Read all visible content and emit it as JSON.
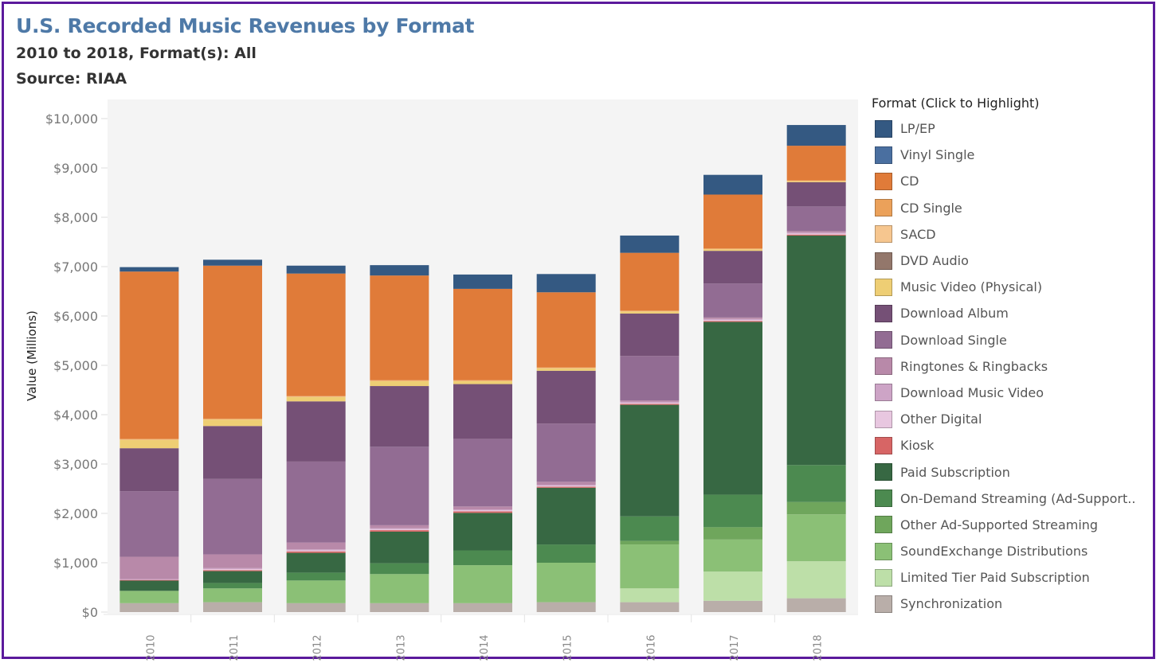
{
  "header": {
    "title": "U.S. Recorded Music Revenues by Format",
    "subtitle": "2010 to 2018, Format(s): All",
    "source": "Source: RIAA"
  },
  "legend": {
    "title": "Format (Click to Highlight)"
  },
  "chart_data": {
    "type": "bar",
    "stacked": true,
    "title": "U.S. Recorded Music Revenues by Format",
    "xlabel": "",
    "ylabel": "Value (Millions)",
    "ylim": [
      0,
      10000
    ],
    "yticks": [
      0,
      1000,
      2000,
      3000,
      4000,
      5000,
      6000,
      7000,
      8000,
      9000,
      10000
    ],
    "ytick_labels": [
      "$0",
      "$1,000",
      "$2,000",
      "$3,000",
      "$4,000",
      "$5,000",
      "$6,000",
      "$7,000",
      "$8,000",
      "$9,000",
      "$10,000"
    ],
    "grid": false,
    "legend_position": "right",
    "categories": [
      "2010",
      "2011",
      "2012",
      "2013",
      "2014",
      "2015",
      "2016",
      "2017",
      "2018"
    ],
    "series": [
      {
        "name": "Synchronization",
        "color": "#b9aea9",
        "values": [
          180,
          200,
          180,
          180,
          180,
          200,
          200,
          230,
          280
        ]
      },
      {
        "name": "Limited Tier Paid Subscription",
        "color": "#bddfa8",
        "values": [
          0,
          0,
          0,
          0,
          0,
          0,
          280,
          590,
          750
        ]
      },
      {
        "name": "SoundExchange Distributions",
        "color": "#8bc076",
        "values": [
          250,
          280,
          460,
          590,
          770,
          800,
          890,
          650,
          950
        ]
      },
      {
        "name": "Other Ad-Supported Streaming",
        "color": "#6fa65c",
        "values": [
          0,
          0,
          0,
          0,
          0,
          0,
          70,
          250,
          250
        ]
      },
      {
        "name": "On-Demand Streaming (Ad-Supported)",
        "color": "#4c8a50",
        "values": [
          0,
          110,
          160,
          220,
          300,
          370,
          500,
          660,
          750
        ]
      },
      {
        "name": "Paid Subscription",
        "color": "#376843",
        "values": [
          210,
          240,
          400,
          640,
          760,
          1150,
          2260,
          3500,
          4650
        ]
      },
      {
        "name": "Kiosk",
        "color": "#d76565",
        "values": [
          10,
          20,
          30,
          30,
          30,
          20,
          20,
          20,
          20
        ]
      },
      {
        "name": "Other Digital",
        "color": "#e8c7e0",
        "values": [
          0,
          20,
          20,
          20,
          20,
          20,
          20,
          20,
          20
        ]
      },
      {
        "name": "Download Music Video",
        "color": "#cda4c6",
        "values": [
          20,
          20,
          20,
          20,
          20,
          20,
          20,
          20,
          20
        ]
      },
      {
        "name": "Ringtones & Ringbacks",
        "color": "#b889a9",
        "values": [
          450,
          280,
          140,
          60,
          60,
          60,
          30,
          30,
          30
        ]
      },
      {
        "name": "Download Single",
        "color": "#926c93",
        "values": [
          1330,
          1530,
          1640,
          1590,
          1370,
          1180,
          900,
          690,
          500
        ]
      },
      {
        "name": "Download Album",
        "color": "#755076",
        "values": [
          870,
          1070,
          1220,
          1230,
          1110,
          1070,
          860,
          660,
          490
        ]
      },
      {
        "name": "Music Video (Physical)",
        "color": "#eece74",
        "values": [
          170,
          130,
          90,
          100,
          60,
          50,
          40,
          30,
          20
        ]
      },
      {
        "name": "DVD Audio",
        "color": "#93776b",
        "values": [
          0,
          0,
          0,
          0,
          0,
          0,
          0,
          0,
          0
        ]
      },
      {
        "name": "SACD",
        "color": "#f6c68f",
        "values": [
          10,
          10,
          10,
          10,
          10,
          10,
          10,
          10,
          10
        ]
      },
      {
        "name": "CD Single",
        "color": "#eba15a",
        "values": [
          10,
          10,
          10,
          10,
          10,
          10,
          10,
          10,
          10
        ]
      },
      {
        "name": "CD",
        "color": "#e07b39",
        "values": [
          3390,
          3100,
          2480,
          2120,
          1850,
          1520,
          1170,
          1090,
          700
        ]
      },
      {
        "name": "Vinyl Single",
        "color": "#4a6fa0",
        "values": [
          0,
          0,
          0,
          0,
          0,
          0,
          0,
          0,
          0
        ]
      },
      {
        "name": "LP/EP",
        "color": "#345982",
        "values": [
          90,
          120,
          160,
          210,
          290,
          370,
          350,
          400,
          420
        ]
      }
    ],
    "legend_order": [
      "LP/EP",
      "Vinyl Single",
      "CD",
      "CD Single",
      "SACD",
      "DVD Audio",
      "Music Video (Physical)",
      "Download Album",
      "Download Single",
      "Ringtones & Ringbacks",
      "Download Music Video",
      "Other Digital",
      "Kiosk",
      "Paid Subscription",
      "On-Demand Streaming (Ad-Support..",
      "Other Ad-Supported Streaming",
      "SoundExchange Distributions",
      "Limited Tier Paid Subscription",
      "Synchronization"
    ]
  }
}
